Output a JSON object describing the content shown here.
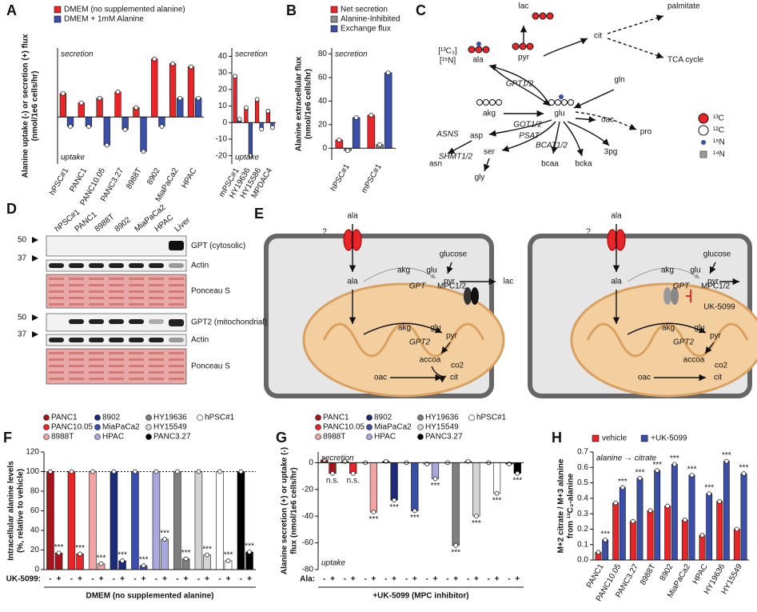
{
  "chart_data": [
    {
      "panel": "A",
      "type": "bar",
      "ylabel": "Alanine uptake (-) or secretion (+) flux",
      "ylabel2": "(nmol/1e6 cells/hr)",
      "categories": [
        "hPSC#1",
        "PANC1",
        "PANC10.05",
        "PANC3.27",
        "8988T",
        "8902",
        "MiaPaCa2",
        "HPAC"
      ],
      "series": [
        {
          "name": "DMEM (no supplemented alanine)",
          "color": "#e8262a",
          "values": [
            7.5,
            4.5,
            6,
            8,
            3,
            18.5,
            17,
            16
          ]
        },
        {
          "name": "DMEM + 1mM Alanine",
          "color": "#3b4fa8",
          "values": [
            -3,
            -3,
            -9,
            -4,
            -11,
            -3,
            6,
            6
          ]
        }
      ],
      "ylim": [
        -15,
        22
      ],
      "top_note": "secretion",
      "bottom_note": "uptake"
    },
    {
      "type": "bar",
      "categories": [
        "mPSC#1",
        "HY19636",
        "HY15586",
        "MPDAC4"
      ],
      "series": [
        {
          "color": "#e8262a",
          "values": [
            28,
            9,
            14,
            7
          ]
        },
        {
          "color": "#3b4fa8",
          "values": [
            2,
            -20,
            -4,
            -3
          ]
        }
      ],
      "ylim": [
        -25,
        45
      ],
      "yticks": [
        -20,
        -10,
        0,
        10,
        20,
        30,
        40
      ],
      "top_note": "secretion",
      "bottom_note": "uptake"
    },
    {
      "panel": "B",
      "type": "bar",
      "ylabel": "Alanine extracellular flux",
      "ylabel2": "(nmol/1e6 cells/hr)",
      "categories": [
        "hPSC#1",
        "mPSC#1"
      ],
      "series": [
        {
          "name": "Net secretion",
          "color": "#e8262a",
          "values": [
            7,
            28
          ]
        },
        {
          "name": "Alanine-Inhibited",
          "color": "#8c8c8c",
          "values": [
            -2,
            3
          ]
        },
        {
          "name": "Exchange flux",
          "color": "#3b4fa8",
          "values": [
            26,
            64
          ]
        }
      ],
      "ylim": [
        -10,
        85
      ],
      "yticks": [
        0,
        20,
        40,
        60,
        80
      ],
      "top_note": "secretion"
    },
    {
      "panel": "F",
      "type": "bar",
      "ylabel": "Intracellular alanine levels",
      "ylabel2": "(%, relative to vehicle)",
      "categories": [
        "PANC1",
        "PANC10.05",
        "8988T",
        "8902",
        "MiaPaCa2",
        "HPAC",
        "HY19636",
        "HY15549",
        "hPSC#1",
        "PANC3.27"
      ],
      "colors": [
        "#a3151b",
        "#e8262a",
        "#f4a3a3",
        "#1c2a78",
        "#3b4fa8",
        "#a9a8dc",
        "#7f7f7f",
        "#d4d4d4",
        "#ffffff",
        "#000000"
      ],
      "series": [
        {
          "name": "-",
          "values": [
            100,
            100,
            100,
            100,
            100,
            100,
            100,
            100,
            100,
            100
          ]
        },
        {
          "name": "+",
          "values": [
            17,
            16,
            6,
            9,
            4,
            31,
            11,
            15,
            9,
            18
          ]
        }
      ],
      "ylim": [
        0,
        120
      ],
      "yticks": [
        0,
        20,
        40,
        60,
        80,
        100,
        120
      ],
      "reference_line": 100,
      "x_prefix": "UK-5099:",
      "xlabel": "DMEM (no supplemented alanine)",
      "significance": [
        "***",
        "***",
        "***",
        "***",
        "***",
        "***",
        "***",
        "***",
        "***",
        "***"
      ]
    },
    {
      "panel": "G",
      "type": "bar",
      "ylabel": "Alanine secretion (+) or uptake (-)",
      "ylabel2": "flux (nmol/1e6 cells/hr)",
      "categories": [
        "PANC1",
        "PANC10.05",
        "8988T",
        "8902",
        "MiaPaCa2",
        "HPAC",
        "HY19636",
        "HY15549",
        "hPSC#1",
        "PANC3.27"
      ],
      "colors": [
        "#a3151b",
        "#e8262a",
        "#f4a3a3",
        "#1c2a78",
        "#3b4fa8",
        "#a9a8dc",
        "#7f7f7f",
        "#d4d4d4",
        "#ffffff",
        "#000000"
      ],
      "series": [
        {
          "name": "-",
          "values": [
            2,
            1,
            0,
            1,
            0,
            -1,
            0,
            1,
            0,
            -1
          ]
        },
        {
          "name": "+",
          "values": [
            -8,
            -8,
            -37,
            -28,
            -36,
            -12,
            -62,
            -40,
            -23,
            -8
          ]
        }
      ],
      "ylim": [
        -80,
        8
      ],
      "yticks": [
        -80,
        -60,
        -40,
        -20,
        0
      ],
      "x_prefix": "Ala:",
      "xlabel": "+UK-5099 (MPC inhibitor)",
      "top_note": "secretion",
      "bottom_note": "uptake",
      "significance": [
        "n.s.",
        "n.s.",
        "***",
        "***",
        "***",
        "***",
        "***",
        "***",
        "***",
        "***"
      ]
    },
    {
      "panel": "H",
      "type": "bar",
      "ylabel": "M+2 citrate / M+3 alanine",
      "ylabel2": "from ¹³C₃-alanine",
      "categories": [
        "PANC1",
        "PANC10.05",
        "PANC3.27",
        "8988T",
        "8902",
        "MiaPaCa2",
        "HPAC",
        "HY19636",
        "HY15549"
      ],
      "series": [
        {
          "name": "vehicle",
          "color": "#e8262a",
          "values": [
            0.05,
            0.37,
            0.25,
            0.32,
            0.35,
            0.26,
            0.16,
            0.38,
            0.2
          ]
        },
        {
          "name": "+UK-5099",
          "color": "#3b4fa8",
          "values": [
            0.13,
            0.47,
            0.53,
            0.58,
            0.62,
            0.55,
            0.43,
            0.64,
            0.56
          ]
        }
      ],
      "ylim": [
        0,
        0.7
      ],
      "yticks": [
        {
          "value": 0,
          "label": "0.0"
        },
        0.1,
        0.2,
        0.3,
        0.4,
        0.5,
        0.6,
        0.7
      ],
      "top_note": "alanine → citrate",
      "significance": [
        "***",
        "***",
        "***",
        "***",
        "***",
        "***",
        "***",
        "***",
        "***"
      ]
    }
  ],
  "pathway": {
    "panel": "C",
    "nodes": [
      "lac",
      "pyr",
      "cit",
      "palmitate",
      "TCA cycle",
      "gln",
      "ala",
      "akg",
      "glu",
      "pro",
      "oac",
      "asp",
      "asn",
      "ser",
      "gly",
      "bcaa",
      "bcka",
      "3pg"
    ],
    "enzymes": [
      "GPT1/2",
      "GOT1/2",
      "PSAT",
      "ASNS",
      "SHMT1/2",
      "BCAT1/2"
    ],
    "tracers": [
      "[¹³C₃]",
      "[¹⁵N]"
    ],
    "legend": [
      "¹³C",
      "¹²C",
      "¹⁵N",
      "¹⁴N"
    ]
  },
  "blots": {
    "panel": "D",
    "lanes": [
      "hPSC#1",
      "PANC1",
      "8988T",
      "8902",
      "MiaPaCa2",
      "HPAC",
      "Liver"
    ],
    "rows": [
      "GPT (cytosolic)",
      "Actin",
      "Ponceau S",
      "GPT2 (mitochondrial)",
      "Actin",
      "Ponceau S"
    ],
    "markers": [
      "50",
      "37",
      "50",
      "37"
    ]
  },
  "model": {
    "panel": "E",
    "labels": [
      "ala",
      "?",
      "glucose",
      "akg",
      "glu",
      "GPT",
      "pyr",
      "lac",
      "MPC1/2",
      "ala",
      "akg",
      "glu",
      "GPT2",
      "pyr",
      "accoa",
      "co2",
      "oac",
      "cit"
    ],
    "inhibitor": "UK-5099"
  }
}
